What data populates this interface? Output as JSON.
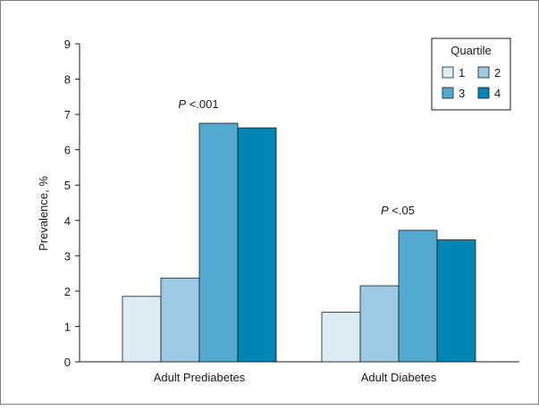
{
  "chart_data": {
    "type": "bar",
    "ylabel": "Prevalence, %",
    "ylim": [
      0,
      9
    ],
    "yticks": [
      "0",
      "1",
      "2",
      "3",
      "4",
      "5",
      "6",
      "7",
      "8",
      "9"
    ],
    "categories": [
      "Adult Prediabetes",
      "Adult Diabetes"
    ],
    "legend": {
      "title": "Quartile",
      "placement": "top-right"
    },
    "series": [
      {
        "name": "1",
        "color": "#dcecf5",
        "values": [
          1.85,
          1.4
        ]
      },
      {
        "name": "2",
        "color": "#9ccae4",
        "values": [
          2.37,
          2.15
        ]
      },
      {
        "name": "3",
        "color": "#53a9cf",
        "values": [
          6.75,
          3.72
        ]
      },
      {
        "name": "4",
        "color": "#0086b4",
        "values": [
          6.62,
          3.45
        ]
      }
    ],
    "annotations": [
      {
        "p": "P",
        "rest": " <.001",
        "category": "Adult Prediabetes",
        "y": 7.3
      },
      {
        "p": "P",
        "rest": " <.05",
        "category": "Adult Diabetes",
        "y": 4.3
      }
    ]
  }
}
